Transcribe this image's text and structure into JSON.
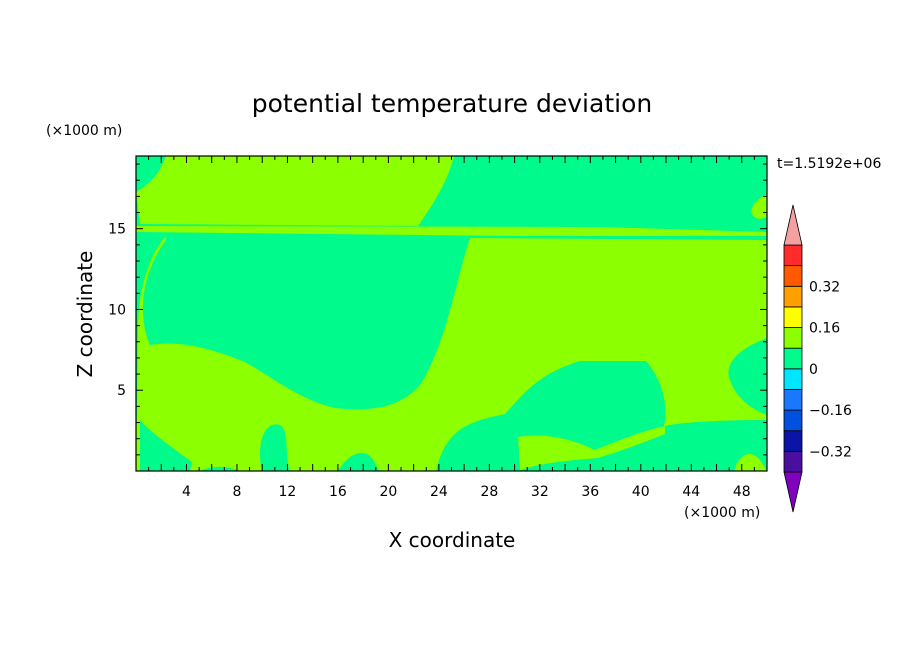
{
  "chart_data": {
    "type": "heatmap",
    "title": "potential temperature deviation",
    "xlabel": "X coordinate",
    "ylabel": "Z coordinate",
    "x_unit": "(×1000 m)",
    "y_unit": "(×1000 m)",
    "time_label": "t=1.5192e+06",
    "xlim": [
      0,
      50
    ],
    "ylim": [
      0,
      19.5
    ],
    "x_ticks": [
      "4",
      "8",
      "12",
      "16",
      "20",
      "24",
      "28",
      "32",
      "36",
      "40",
      "44",
      "48"
    ],
    "y_ticks": [
      "5",
      "10",
      "15"
    ],
    "colorbar": {
      "labels": [
        "0.32",
        "0.16",
        "0",
        "-0.16",
        "-0.32"
      ],
      "levels": [
        {
          "range": [
            -0.48,
            -0.4
          ],
          "color": "#7f00bf"
        },
        {
          "range": [
            -0.4,
            -0.32
          ],
          "color": "#4b0fa0"
        },
        {
          "range": [
            -0.32,
            -0.24
          ],
          "color": "#0a14a6"
        },
        {
          "range": [
            -0.24,
            -0.16
          ],
          "color": "#0050e0"
        },
        {
          "range": [
            -0.16,
            -0.08
          ],
          "color": "#1a78ff"
        },
        {
          "range": [
            -0.08,
            0.0
          ],
          "color": "#00e6ff"
        },
        {
          "range": [
            0.0,
            0.08
          ],
          "color": "#00fa8c"
        },
        {
          "range": [
            0.08,
            0.16
          ],
          "color": "#8cff00"
        },
        {
          "range": [
            0.16,
            0.24
          ],
          "color": "#ffff00"
        },
        {
          "range": [
            0.24,
            0.32
          ],
          "color": "#ffa000"
        },
        {
          "range": [
            0.32,
            0.4
          ],
          "color": "#ff5a00"
        },
        {
          "range": [
            0.4,
            0.48
          ],
          "color": "#ff2a2a"
        },
        {
          "range": [
            0.48,
            0.56
          ],
          "color": "#f5a0a0"
        }
      ]
    },
    "field_colors": {
      "low": "#00fa8c",
      "high": "#8cff00"
    }
  }
}
